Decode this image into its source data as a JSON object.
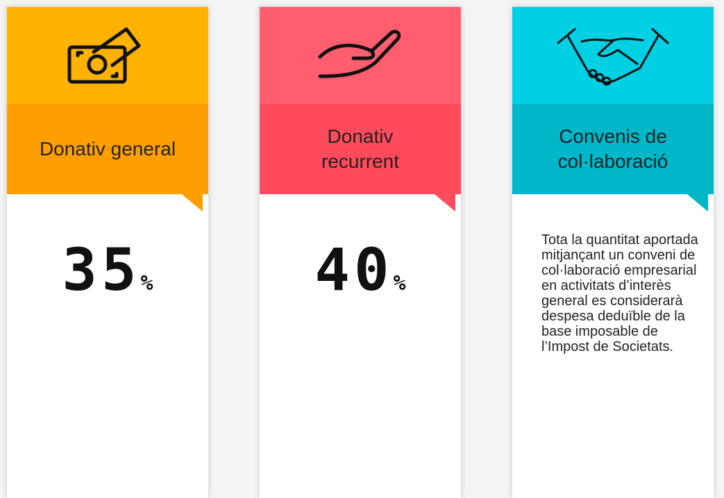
{
  "cards": [
    {
      "title": "Donativ general",
      "percent": "35",
      "percent_sign": "%"
    },
    {
      "title": "Donativ recurrent",
      "percent": "40",
      "percent_sign": "%"
    },
    {
      "title": "Convenis de col·laboració",
      "description": "Tota la quantitat aportada mitjançant un conveni de col·laboració empresarial en activitats d’interès general es considerarà despesa deduïble de la base imposable de l’Impost de Societats."
    }
  ]
}
